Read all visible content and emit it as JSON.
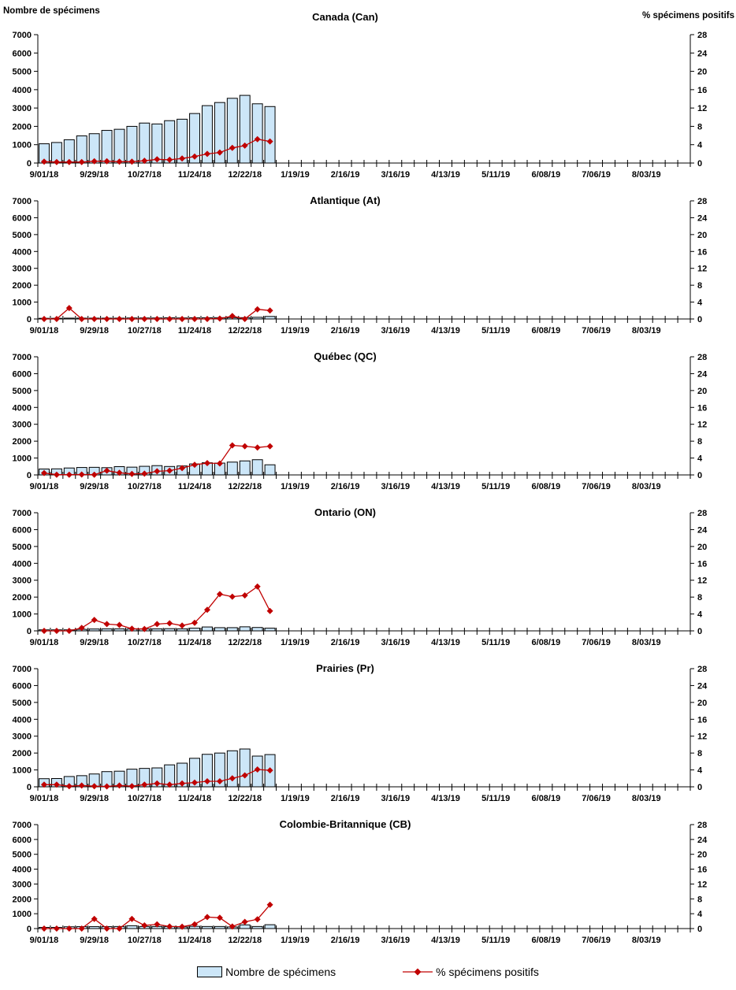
{
  "header": {
    "left_axis_title": "Nombre de spécimens",
    "right_axis_title": "% spécimens positifs"
  },
  "legend": {
    "items": [
      {
        "label": "Nombre de spécimens",
        "marker": "bar-swatch"
      },
      {
        "label": "% spécimens positifs",
        "marker": "line-diamond"
      }
    ]
  },
  "colors": {
    "bar_fill": "#cce6f8",
    "bar_stroke": "#000000",
    "line": "#c00000",
    "axis": "#000000"
  },
  "chart_data": {
    "type": "bar",
    "note": "combo bar + line, 6 stacked weekly panels; bars = left axis counts, red diamond line = right axis percent",
    "categories": [
      "9/01/18",
      "9/08/18",
      "9/15/18",
      "9/22/18",
      "9/29/18",
      "10/06/18",
      "10/13/18",
      "10/20/18",
      "10/27/18",
      "11/03/18",
      "11/10/18",
      "11/17/18",
      "11/24/18",
      "12/01/18",
      "12/08/18",
      "12/15/18",
      "12/22/18",
      "12/29/18",
      "1/05/19"
    ],
    "x_axis": {
      "tick_labels": [
        "9/01/18",
        "9/29/18",
        "10/27/18",
        "11/24/18",
        "12/22/18",
        "1/19/19",
        "2/16/19",
        "3/16/19",
        "4/13/19",
        "5/11/19",
        "6/08/19",
        "7/06/19",
        "8/03/19"
      ],
      "weeks_total": 52,
      "label_every": 4
    },
    "left_axis": {
      "title": "Nombre de spécimens",
      "min": 0,
      "max": 7000,
      "step": 1000,
      "tick_labels": [
        "0",
        "1000",
        "2000",
        "3000",
        "4000",
        "5000",
        "6000",
        "7000"
      ]
    },
    "right_axis": {
      "title": "% spécimens positifs",
      "min": 0,
      "max": 28,
      "step": 4,
      "tick_labels": [
        "0",
        "4",
        "8",
        "12",
        "16",
        "20",
        "24",
        "28"
      ]
    },
    "panels": [
      {
        "id": "canada",
        "title": "Canada (Can)",
        "bars": [
          1050,
          1120,
          1270,
          1480,
          1600,
          1780,
          1840,
          2000,
          2180,
          2130,
          2310,
          2390,
          2700,
          3130,
          3300,
          3530,
          3690,
          3230,
          3080
        ],
        "line_pct": [
          0.3,
          0.2,
          0.2,
          0.2,
          0.4,
          0.4,
          0.3,
          0.3,
          0.5,
          0.8,
          0.7,
          1.0,
          1.4,
          2.0,
          2.3,
          3.3,
          3.8,
          5.2,
          4.7
        ]
      },
      {
        "id": "atlantique",
        "title": "Atlantique (At)",
        "bars": [
          40,
          40,
          50,
          50,
          50,
          50,
          50,
          60,
          60,
          60,
          70,
          60,
          70,
          70,
          80,
          80,
          80,
          100,
          150
        ],
        "line_pct": [
          0,
          0,
          2.6,
          0,
          0,
          0,
          0,
          0,
          0,
          0,
          0,
          0,
          0,
          0,
          0.1,
          0.7,
          0,
          2.3,
          2.0
        ]
      },
      {
        "id": "quebec",
        "title": "Québec (QC)",
        "bars": [
          350,
          360,
          410,
          440,
          450,
          430,
          490,
          460,
          510,
          550,
          500,
          530,
          650,
          720,
          700,
          760,
          830,
          900,
          600
        ],
        "line_pct": [
          0.45,
          0.05,
          0.05,
          0.1,
          0.05,
          1.0,
          0.5,
          0.25,
          0.3,
          0.85,
          1.0,
          1.6,
          2.4,
          2.8,
          2.7,
          7.0,
          6.8,
          6.5,
          6.8
        ]
      },
      {
        "id": "ontario",
        "title": "Ontario (ON)",
        "bars": [
          60,
          60,
          60,
          90,
          110,
          120,
          120,
          110,
          120,
          120,
          130,
          120,
          160,
          230,
          190,
          190,
          240,
          200,
          160
        ],
        "line_pct": [
          0,
          0,
          0,
          0.7,
          2.6,
          1.6,
          1.4,
          0.5,
          0.45,
          1.6,
          1.8,
          1.25,
          1.9,
          5.0,
          8.7,
          8.1,
          8.4,
          10.5,
          4.7
        ]
      },
      {
        "id": "prairies",
        "title": "Prairies (Pr)",
        "bars": [
          480,
          490,
          610,
          660,
          760,
          900,
          925,
          1045,
          1090,
          1120,
          1300,
          1400,
          1690,
          1925,
          2000,
          2135,
          2240,
          1820,
          1910
        ],
        "line_pct": [
          0.5,
          0.5,
          0.15,
          0.3,
          0.15,
          0.1,
          0.3,
          0.15,
          0.5,
          0.8,
          0.5,
          0.8,
          1.0,
          1.3,
          1.3,
          2.0,
          2.7,
          4.1,
          3.9
        ]
      },
      {
        "id": "colombie-britannique",
        "title": "Colombie-Britannique (CB)",
        "bars": [
          80,
          80,
          120,
          130,
          130,
          130,
          140,
          190,
          140,
          140,
          140,
          110,
          150,
          140,
          140,
          110,
          250,
          140,
          260
        ],
        "line_pct": [
          0,
          0,
          0,
          0,
          2.6,
          0,
          0,
          2.6,
          0.85,
          1.15,
          0.55,
          0.5,
          1.15,
          3.1,
          2.9,
          0.55,
          1.8,
          2.5,
          6.4
        ]
      }
    ]
  }
}
